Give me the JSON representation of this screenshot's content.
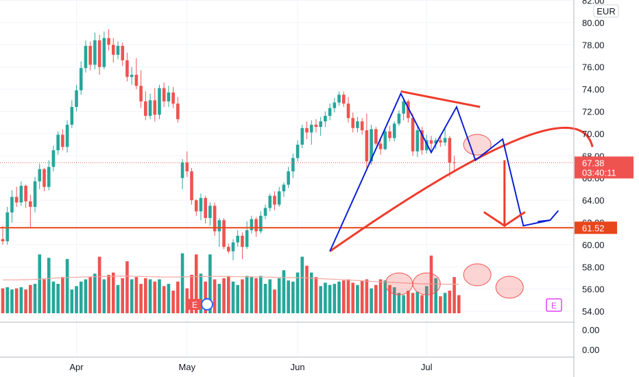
{
  "currency_label": "EUR",
  "earnings_marker": "E",
  "chart_data": {
    "type": "candlestick",
    "y_axis_ticks": [
      "82.00",
      "80.00",
      "78.00",
      "76.00",
      "74.00",
      "72.00",
      "70.00",
      "68.00",
      "66.00",
      "64.00",
      "62.00",
      "60.00",
      "58.00",
      "56.00",
      "54.00"
    ],
    "ylim": [
      54,
      82
    ],
    "volume_axis_ticks": [
      "0.00",
      "0.00"
    ],
    "x_axis_ticks": [
      {
        "label": "Apr",
        "index": 16
      },
      {
        "label": "May",
        "index": 40
      },
      {
        "label": "Jun",
        "index": 64
      },
      {
        "label": "Jul",
        "index": 92
      }
    ],
    "grid": true,
    "last_price": {
      "value": 67.38,
      "label": "67.38",
      "countdown": "03:40:11",
      "color": "#ef5350"
    },
    "support_level": {
      "value": 61.52,
      "label": "61.52",
      "color": "#e8471b"
    },
    "colors": {
      "up": "#26a69a",
      "down": "#ef5350",
      "pattern": "#0a1fd6",
      "arc": "#ef3b2c"
    },
    "candles": [
      [
        60.5,
        61.7,
        60.0,
        60.3
      ],
      [
        60.3,
        63.4,
        60.0,
        62.9
      ],
      [
        62.9,
        64.9,
        62.0,
        64.3
      ],
      [
        64.3,
        65.2,
        63.4,
        63.8
      ],
      [
        63.8,
        65.7,
        63.5,
        65.3
      ],
      [
        65.3,
        65.4,
        63.3,
        63.9
      ],
      [
        63.9,
        64.5,
        61.5,
        63.4
      ],
      [
        63.4,
        66.1,
        62.9,
        65.7
      ],
      [
        65.7,
        67.3,
        65.0,
        66.8
      ],
      [
        66.8,
        66.9,
        64.8,
        65.2
      ],
      [
        65.2,
        67.6,
        64.9,
        67.0
      ],
      [
        67.0,
        68.9,
        66.6,
        68.5
      ],
      [
        68.5,
        70.2,
        68.1,
        69.9
      ],
      [
        69.9,
        70.4,
        68.5,
        68.8
      ],
      [
        68.8,
        71.2,
        68.3,
        70.8
      ],
      [
        70.8,
        73.0,
        70.5,
        72.4
      ],
      [
        72.4,
        74.4,
        72.0,
        73.9
      ],
      [
        73.9,
        76.5,
        73.5,
        75.9
      ],
      [
        75.9,
        78.4,
        75.5,
        77.9
      ],
      [
        77.9,
        78.3,
        75.7,
        76.2
      ],
      [
        76.2,
        79.1,
        75.8,
        78.4
      ],
      [
        78.4,
        78.9,
        75.3,
        76.0
      ],
      [
        76.0,
        79.2,
        75.8,
        78.6
      ],
      [
        78.6,
        79.4,
        77.5,
        78.0
      ],
      [
        78.0,
        78.6,
        76.4,
        77.1
      ],
      [
        77.1,
        78.3,
        76.7,
        77.9
      ],
      [
        77.9,
        78.2,
        76.1,
        76.6
      ],
      [
        76.6,
        77.3,
        74.7,
        75.1
      ],
      [
        75.1,
        76.0,
        74.4,
        75.3
      ],
      [
        75.3,
        76.8,
        74.0,
        74.3
      ],
      [
        74.3,
        75.7,
        72.3,
        72.9
      ],
      [
        72.9,
        73.8,
        71.2,
        71.6
      ],
      [
        71.6,
        73.6,
        71.3,
        73.0
      ],
      [
        73.0,
        74.1,
        71.1,
        71.7
      ],
      [
        71.7,
        74.4,
        71.3,
        74.1
      ],
      [
        74.1,
        74.6,
        72.4,
        72.9
      ],
      [
        72.9,
        74.3,
        72.4,
        73.7
      ],
      [
        73.7,
        74.2,
        72.3,
        72.7
      ],
      [
        72.7,
        73.3,
        71.0,
        71.3
      ],
      [
        66.0,
        67.7,
        65.0,
        67.4
      ],
      [
        67.4,
        68.4,
        66.1,
        66.6
      ],
      [
        66.6,
        66.9,
        63.6,
        64.0
      ],
      [
        64.0,
        64.1,
        62.6,
        63.0
      ],
      [
        63.0,
        64.6,
        62.2,
        64.2
      ],
      [
        64.2,
        64.4,
        61.9,
        62.4
      ],
      [
        62.4,
        63.8,
        61.7,
        63.5
      ],
      [
        63.5,
        63.8,
        60.8,
        61.2
      ],
      [
        61.2,
        62.4,
        59.8,
        62.2
      ],
      [
        62.2,
        62.4,
        59.6,
        59.8
      ],
      [
        59.8,
        60.1,
        59.2,
        59.4
      ],
      [
        59.4,
        60.5,
        58.6,
        60.2
      ],
      [
        60.2,
        61.3,
        59.8,
        60.8
      ],
      [
        60.8,
        61.1,
        58.7,
        59.8
      ],
      [
        59.8,
        62.1,
        59.6,
        61.3
      ],
      [
        61.3,
        62.6,
        61.0,
        62.3
      ],
      [
        62.3,
        62.5,
        60.7,
        61.2
      ],
      [
        61.2,
        63.0,
        61.0,
        62.6
      ],
      [
        62.6,
        63.6,
        62.3,
        63.3
      ],
      [
        63.3,
        64.6,
        63.0,
        64.4
      ],
      [
        64.4,
        64.8,
        63.1,
        63.6
      ],
      [
        63.6,
        65.2,
        63.4,
        64.8
      ],
      [
        64.8,
        65.6,
        64.3,
        65.4
      ],
      [
        65.4,
        67.0,
        65.1,
        66.6
      ],
      [
        66.6,
        68.2,
        66.0,
        67.8
      ],
      [
        67.8,
        69.4,
        67.5,
        69.0
      ],
      [
        69.0,
        70.8,
        68.7,
        70.5
      ],
      [
        70.5,
        71.1,
        69.5,
        70.1
      ],
      [
        70.1,
        71.2,
        69.0,
        70.8
      ],
      [
        70.8,
        71.3,
        70.1,
        70.6
      ],
      [
        70.6,
        71.5,
        69.8,
        71.1
      ],
      [
        71.1,
        72.0,
        70.6,
        71.6
      ],
      [
        71.6,
        72.7,
        71.2,
        72.3
      ],
      [
        72.3,
        73.2,
        71.9,
        72.8
      ],
      [
        72.8,
        73.8,
        72.5,
        73.5
      ],
      [
        73.5,
        73.8,
        72.4,
        72.7
      ],
      [
        72.7,
        73.3,
        71.0,
        71.4
      ],
      [
        71.4,
        71.9,
        70.1,
        70.5
      ],
      [
        70.5,
        71.5,
        70.1,
        71.1
      ],
      [
        71.1,
        71.4,
        69.9,
        70.3
      ],
      [
        70.3,
        71.8,
        66.9,
        67.5
      ],
      [
        67.5,
        70.8,
        67.2,
        70.4
      ],
      [
        70.4,
        70.6,
        68.9,
        69.1
      ],
      [
        69.1,
        69.5,
        68.1,
        68.6
      ],
      [
        68.6,
        70.4,
        68.5,
        70.2
      ],
      [
        70.2,
        70.7,
        69.3,
        69.6
      ],
      [
        69.6,
        71.1,
        69.3,
        70.9
      ],
      [
        70.9,
        72.1,
        70.7,
        71.8
      ],
      [
        71.8,
        73.2,
        71.2,
        72.9
      ],
      [
        72.9,
        73.1,
        71.0,
        71.4
      ],
      [
        71.4,
        71.8,
        68.0,
        68.4
      ],
      [
        68.4,
        70.7,
        67.9,
        70.3
      ],
      [
        70.3,
        70.6,
        68.1,
        68.5
      ],
      [
        68.5,
        69.9,
        68.2,
        69.4
      ],
      [
        69.4,
        69.8,
        68.4,
        69.1
      ],
      [
        69.1,
        69.6,
        68.6,
        69.4
      ],
      [
        69.4,
        69.8,
        68.8,
        69.2
      ],
      [
        69.2,
        70.5,
        68.9,
        69.6
      ],
      [
        69.6,
        69.8,
        66.1,
        67.4
      ],
      [
        67.4,
        68.0,
        66.6,
        67.38
      ]
    ],
    "volumes": [
      2.2,
      2.3,
      2.1,
      2.2,
      2.3,
      2.1,
      2.5,
      2.6,
      5.2,
      3.0,
      4.9,
      2.8,
      2.6,
      3.2,
      4.8,
      2.1,
      2.4,
      2.8,
      3.0,
      3.2,
      3.5,
      5.0,
      3.0,
      3.4,
      3.6,
      2.5,
      3.1,
      4.6,
      3.0,
      3.2,
      2.6,
      3.1,
      3.0,
      2.8,
      3.0,
      2.4,
      2.6,
      2.0,
      2.8,
      5.3,
      2.2,
      3.4,
      5.2,
      3.5,
      2.8,
      5.2,
      3.0,
      2.6,
      3.1,
      3.3,
      2.8,
      2.5,
      3.0,
      3.3,
      3.2,
      3.1,
      3.3,
      2.6,
      3.0,
      2.1,
      3.1,
      3.8,
      2.9,
      2.8,
      3.6,
      5.0,
      4.2,
      3.6,
      3.2,
      2.4,
      2.7,
      2.5,
      2.6,
      2.8,
      2.9,
      3.0,
      2.7,
      2.5,
      2.9,
      3.0,
      2.2,
      2.5,
      3.0,
      2.9,
      2.5,
      2.3,
      1.8,
      1.6,
      2.0,
      1.8,
      1.9,
      1.6,
      2.4,
      5.1,
      3.1,
      1.5,
      1.8,
      2.0,
      3.2,
      1.6
    ],
    "volume_ma": [
      2.95,
      2.95,
      2.95,
      2.95,
      2.96,
      2.97,
      2.98,
      3.0,
      3.02,
      3.05,
      3.08,
      3.1,
      3.12,
      3.14,
      3.15,
      3.17,
      3.18,
      3.2,
      3.21,
      3.22,
      3.23,
      3.24,
      3.25,
      3.26,
      3.27,
      3.28,
      3.29,
      3.28,
      3.27,
      3.26,
      3.25,
      3.24,
      3.23,
      3.22,
      3.21,
      3.2,
      3.2,
      3.2,
      3.21,
      3.22,
      3.22,
      3.23,
      3.24,
      3.25,
      3.25,
      3.26,
      3.26,
      3.26,
      3.25,
      3.25,
      3.24,
      3.24,
      3.23,
      3.22,
      3.22,
      3.21,
      3.2,
      3.2,
      3.19,
      3.18,
      3.17,
      3.17,
      3.16,
      3.15,
      3.14,
      3.14,
      3.12,
      3.1,
      3.08,
      3.06,
      3.04,
      3.02,
      3.0,
      2.98,
      2.96,
      2.94,
      2.92,
      2.9,
      2.87,
      2.84,
      2.82,
      2.8,
      2.78,
      2.76,
      2.74,
      2.72,
      2.7,
      2.68,
      2.66,
      2.64,
      2.62,
      2.6,
      2.6,
      2.59,
      2.58,
      2.58,
      2.57,
      2.57,
      2.56,
      2.56
    ],
    "annotations": {
      "zigzag": [
        [
          71,
          59.4
        ],
        [
          86.4,
          73.6
        ],
        [
          93,
          68.3
        ],
        [
          98.5,
          72.4
        ],
        [
          102.6,
          67.6
        ],
        [
          108.5,
          69.5
        ],
        [
          113,
          61.7
        ],
        [
          118.8,
          62.2
        ]
      ],
      "neckline_arc": {
        "from": [
          71,
          59.4
        ],
        "apex": [
          112,
          69.5
        ],
        "to": [
          128,
          68.8
        ]
      },
      "shoulder_line": [
        [
          86.4,
          73.8
        ],
        [
          103.6,
          72.4
        ]
      ],
      "target_arrow": {
        "x": 108.9,
        "from": 67.6,
        "to": 61.7
      },
      "volume_highlights": [
        [
          86,
          2.6
        ],
        [
          92,
          2.6
        ],
        [
          103,
          3.4
        ],
        [
          110,
          2.3
        ]
      ],
      "price_highlight": [
        103,
        69.0
      ]
    }
  }
}
